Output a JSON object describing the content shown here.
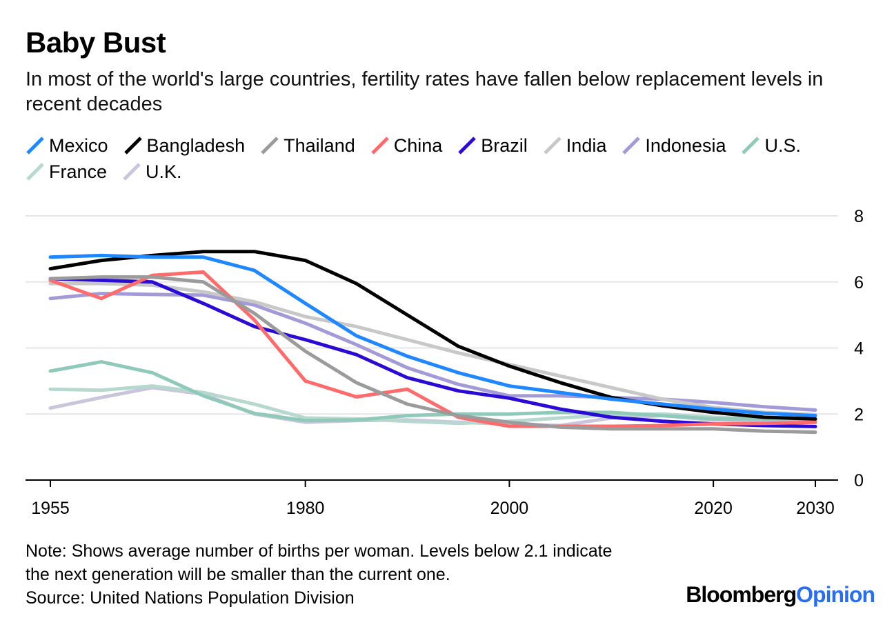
{
  "header": {
    "title": "Baby Bust",
    "subtitle": "In most of the world's large countries, fertility rates have fallen below replacement levels in recent decades"
  },
  "footer": {
    "note_line1": "Note: Shows average number of births per woman. Levels below 2.1 indicate",
    "note_line2": "the next generation will be smaller than the current one.",
    "source": "Source: United Nations Population Division",
    "brand_part1": "Bloomberg",
    "brand_part2": "Opinion"
  },
  "chart_data": {
    "type": "line",
    "x_ticks": [
      1955,
      1980,
      2000,
      2020,
      2030
    ],
    "y_ticks": [
      0,
      2,
      4,
      6,
      8
    ],
    "ylim": [
      0,
      8
    ],
    "xlim": [
      1955,
      2030
    ],
    "grid": true,
    "legend_position": "top",
    "series": [
      {
        "name": "Mexico",
        "color": "#1f87ff",
        "x": [
          1955,
          1960,
          1965,
          1970,
          1975,
          1980,
          1985,
          1990,
          1995,
          2000,
          2005,
          2010,
          2015,
          2020,
          2025,
          2030
        ],
        "y": [
          6.75,
          6.8,
          6.75,
          6.75,
          6.35,
          5.35,
          4.37,
          3.75,
          3.25,
          2.85,
          2.65,
          2.45,
          2.3,
          2.15,
          2.02,
          1.95
        ]
      },
      {
        "name": "Bangladesh",
        "color": "#000000",
        "x": [
          1955,
          1960,
          1965,
          1970,
          1975,
          1980,
          1985,
          1990,
          1995,
          2000,
          2005,
          2010,
          2015,
          2020,
          2025,
          2030
        ],
        "y": [
          6.4,
          6.65,
          6.8,
          6.92,
          6.92,
          6.65,
          5.95,
          5.0,
          4.05,
          3.45,
          2.95,
          2.5,
          2.25,
          2.05,
          1.9,
          1.85
        ]
      },
      {
        "name": "Thailand",
        "color": "#9b9b9b",
        "x": [
          1955,
          1960,
          1965,
          1970,
          1975,
          1980,
          1985,
          1990,
          1995,
          2000,
          2005,
          2010,
          2015,
          2020,
          2025,
          2030
        ],
        "y": [
          6.1,
          6.15,
          6.15,
          6.0,
          5.05,
          3.9,
          2.95,
          2.3,
          1.95,
          1.75,
          1.6,
          1.55,
          1.55,
          1.55,
          1.48,
          1.45
        ]
      },
      {
        "name": "China",
        "color": "#ff6b6b",
        "x": [
          1955,
          1960,
          1965,
          1970,
          1975,
          1980,
          1985,
          1990,
          1995,
          2000,
          2005,
          2010,
          2015,
          2020,
          2025,
          2030
        ],
        "y": [
          6.05,
          5.5,
          6.2,
          6.3,
          4.85,
          3.0,
          2.52,
          2.75,
          1.9,
          1.63,
          1.63,
          1.63,
          1.65,
          1.7,
          1.72,
          1.75
        ]
      },
      {
        "name": "Brazil",
        "color": "#2a0bd6",
        "x": [
          1955,
          1960,
          1965,
          1970,
          1975,
          1980,
          1985,
          1990,
          1995,
          2000,
          2005,
          2010,
          2015,
          2020,
          2025,
          2030
        ],
        "y": [
          6.1,
          6.05,
          6.0,
          5.35,
          4.65,
          4.25,
          3.8,
          3.1,
          2.7,
          2.48,
          2.15,
          1.9,
          1.78,
          1.7,
          1.65,
          1.62
        ]
      },
      {
        "name": "India",
        "color": "#c8c8c8",
        "x": [
          1955,
          1960,
          1965,
          1970,
          1975,
          1980,
          1985,
          1990,
          1995,
          2000,
          2005,
          2010,
          2015,
          2020,
          2025,
          2030
        ],
        "y": [
          5.95,
          5.95,
          5.9,
          5.7,
          5.4,
          4.95,
          4.65,
          4.25,
          3.85,
          3.5,
          3.15,
          2.8,
          2.45,
          2.2,
          2.05,
          1.98
        ]
      },
      {
        "name": "Indonesia",
        "color": "#a39ad8",
        "x": [
          1955,
          1960,
          1965,
          1970,
          1975,
          1980,
          1985,
          1990,
          1995,
          2000,
          2005,
          2010,
          2015,
          2020,
          2025,
          2030
        ],
        "y": [
          5.5,
          5.65,
          5.62,
          5.6,
          5.3,
          4.75,
          4.1,
          3.4,
          2.9,
          2.55,
          2.55,
          2.5,
          2.45,
          2.35,
          2.22,
          2.12
        ]
      },
      {
        "name": "U.S.",
        "color": "#8fc9b9",
        "x": [
          1955,
          1960,
          1965,
          1970,
          1975,
          1980,
          1985,
          1990,
          1995,
          2000,
          2005,
          2010,
          2015,
          2020,
          2025,
          2030
        ],
        "y": [
          3.3,
          3.58,
          3.25,
          2.55,
          2.02,
          1.8,
          1.82,
          1.95,
          2.0,
          2.0,
          2.05,
          2.05,
          1.95,
          1.85,
          1.85,
          1.85
        ]
      },
      {
        "name": "France",
        "color": "#b7d8cf",
        "x": [
          1955,
          1960,
          1965,
          1970,
          1975,
          1980,
          1985,
          1990,
          1995,
          2000,
          2005,
          2010,
          2015,
          2020,
          2025,
          2030
        ],
        "y": [
          2.75,
          2.72,
          2.85,
          2.65,
          2.3,
          1.88,
          1.85,
          1.78,
          1.72,
          1.78,
          1.88,
          1.98,
          2.0,
          1.9,
          1.85,
          1.85
        ]
      },
      {
        "name": "U.K.",
        "color": "#c9c5dc",
        "x": [
          1955,
          1960,
          1965,
          1970,
          1975,
          1980,
          1985,
          1990,
          1995,
          2000,
          2005,
          2010,
          2015,
          2020,
          2025,
          2030
        ],
        "y": [
          2.18,
          2.5,
          2.8,
          2.6,
          2.0,
          1.75,
          1.8,
          1.82,
          1.75,
          1.7,
          1.65,
          1.88,
          1.95,
          1.82,
          1.8,
          1.8
        ]
      }
    ]
  }
}
